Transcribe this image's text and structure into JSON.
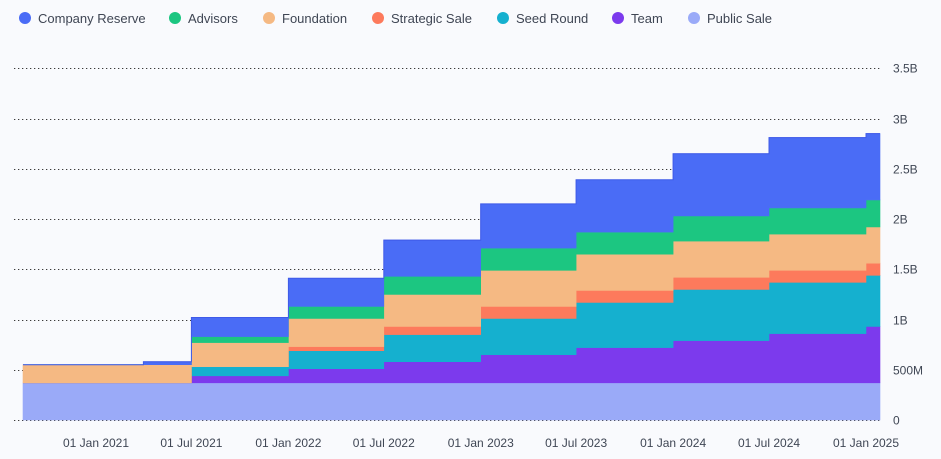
{
  "chart_data": {
    "type": "area",
    "step": true,
    "stacked": true,
    "legend_position": "top-left",
    "grid": true,
    "y_axis_side": "right",
    "ylim": [
      0,
      3.5
    ],
    "y_unit": "B tokens",
    "y_ticks": [
      {
        "value": 0,
        "label": "0"
      },
      {
        "value": 0.5,
        "label": "500M"
      },
      {
        "value": 1,
        "label": "1B"
      },
      {
        "value": 1.5,
        "label": "1.5B"
      },
      {
        "value": 2,
        "label": "2B"
      },
      {
        "value": 2.5,
        "label": "2.5B"
      },
      {
        "value": 3,
        "label": "3B"
      },
      {
        "value": 3.5,
        "label": "3.5B"
      }
    ],
    "x_range": [
      "2020-09-01",
      "2025-03-01"
    ],
    "x_ticks": [
      {
        "date": "2021-01-01",
        "label": "01 Jan 2021"
      },
      {
        "date": "2021-07-01",
        "label": "01 Jul 2021"
      },
      {
        "date": "2022-01-01",
        "label": "01 Jan 2022"
      },
      {
        "date": "2022-07-01",
        "label": "01 Jul 2022"
      },
      {
        "date": "2023-01-01",
        "label": "01 Jan 2023"
      },
      {
        "date": "2023-07-01",
        "label": "01 Jul 2023"
      },
      {
        "date": "2024-01-01",
        "label": "01 Jan 2024"
      },
      {
        "date": "2024-07-01",
        "label": "01 Jul 2024"
      },
      {
        "date": "2025-01-01",
        "label": "01 Jan 2025"
      }
    ],
    "x": [
      "2020-09-01",
      "2021-04-01",
      "2021-07-01",
      "2022-01-01",
      "2022-07-01",
      "2023-01-01",
      "2023-07-01",
      "2024-01-01",
      "2024-07-01",
      "2025-01-01"
    ],
    "series": [
      {
        "name": "Public Sale",
        "color": "#9aaaf8",
        "values": [
          0.37,
          0.37,
          0.37,
          0.37,
          0.37,
          0.37,
          0.37,
          0.37,
          0.37,
          0.37
        ]
      },
      {
        "name": "Team",
        "color": "#7c3aed",
        "values": [
          0,
          0,
          0.07,
          0.14,
          0.21,
          0.28,
          0.35,
          0.42,
          0.49,
          0.56
        ]
      },
      {
        "name": "Seed Round",
        "color": "#15b0cf",
        "values": [
          0,
          0,
          0.09,
          0.18,
          0.27,
          0.36,
          0.45,
          0.51,
          0.51,
          0.51
        ]
      },
      {
        "name": "Strategic Sale",
        "color": "#fd7a5c",
        "values": [
          0,
          0,
          0,
          0.04,
          0.08,
          0.12,
          0.12,
          0.12,
          0.12,
          0.12
        ]
      },
      {
        "name": "Foundation",
        "color": "#f5b983",
        "values": [
          0.18,
          0.18,
          0.24,
          0.28,
          0.32,
          0.36,
          0.36,
          0.36,
          0.36,
          0.36
        ]
      },
      {
        "name": "Advisors",
        "color": "#1cc681",
        "values": [
          0,
          0,
          0.06,
          0.12,
          0.18,
          0.22,
          0.22,
          0.25,
          0.26,
          0.27
        ]
      },
      {
        "name": "Company Reserve",
        "color": "#4a6cf6",
        "values": [
          0,
          0.03,
          0.19,
          0.28,
          0.36,
          0.44,
          0.52,
          0.62,
          0.7,
          0.66
        ]
      }
    ]
  }
}
